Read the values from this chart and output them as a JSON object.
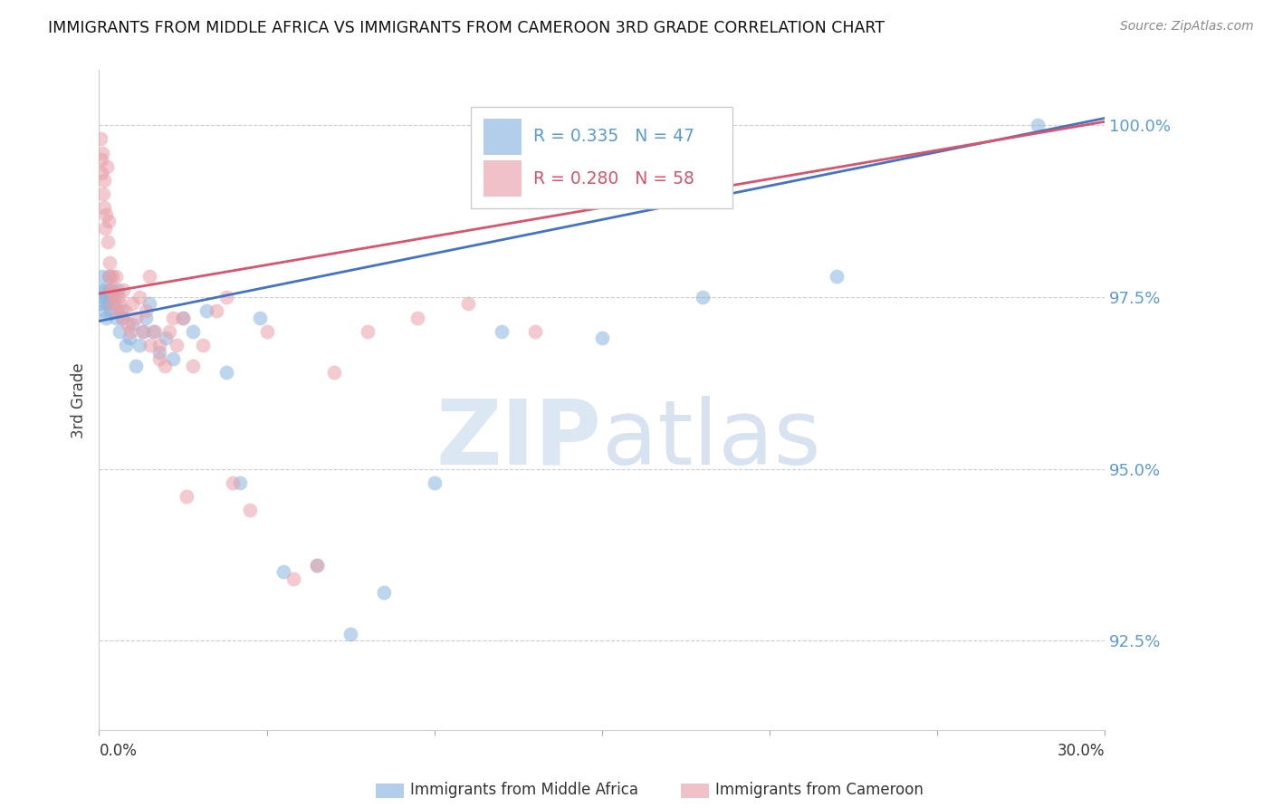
{
  "title": "IMMIGRANTS FROM MIDDLE AFRICA VS IMMIGRANTS FROM CAMEROON 3RD GRADE CORRELATION CHART",
  "source": "Source: ZipAtlas.com",
  "ylabel": "3rd Grade",
  "y_ticks": [
    92.5,
    95.0,
    97.5,
    100.0
  ],
  "x_lim": [
    0.0,
    30.0
  ],
  "y_lim": [
    91.2,
    100.8
  ],
  "watermark_zip": "ZIP",
  "watermark_atlas": "atlas",
  "series1_label": "Immigrants from Middle Africa",
  "series1_color": "#8ab4e0",
  "series2_label": "Immigrants from Cameroon",
  "series2_color": "#e8a0a8",
  "series1_R": 0.335,
  "series1_N": 47,
  "series2_R": 0.28,
  "series2_N": 58,
  "blue_x": [
    0.05,
    0.08,
    0.1,
    0.12,
    0.15,
    0.18,
    0.2,
    0.22,
    0.25,
    0.28,
    0.3,
    0.35,
    0.4,
    0.45,
    0.5,
    0.55,
    0.6,
    0.65,
    0.7,
    0.8,
    0.9,
    1.0,
    1.1,
    1.2,
    1.3,
    1.4,
    1.5,
    1.6,
    1.8,
    2.0,
    2.2,
    2.5,
    2.8,
    3.2,
    3.8,
    4.2,
    4.8,
    5.5,
    6.5,
    7.5,
    8.5,
    10.0,
    12.0,
    15.0,
    18.0,
    22.0,
    28.0
  ],
  "blue_y": [
    97.4,
    97.6,
    97.8,
    97.5,
    97.3,
    97.6,
    97.2,
    97.4,
    97.5,
    97.8,
    97.6,
    97.3,
    97.5,
    97.4,
    97.2,
    97.6,
    97.0,
    97.3,
    97.2,
    96.8,
    96.9,
    97.1,
    96.5,
    96.8,
    97.0,
    97.2,
    97.4,
    97.0,
    96.7,
    96.9,
    96.6,
    97.2,
    97.0,
    97.3,
    96.4,
    94.8,
    97.2,
    93.5,
    93.6,
    92.6,
    93.2,
    94.8,
    97.0,
    96.9,
    97.5,
    97.8,
    100.0
  ],
  "pink_x": [
    0.03,
    0.06,
    0.08,
    0.1,
    0.12,
    0.14,
    0.16,
    0.18,
    0.2,
    0.22,
    0.25,
    0.28,
    0.3,
    0.32,
    0.35,
    0.38,
    0.4,
    0.43,
    0.46,
    0.5,
    0.54,
    0.58,
    0.62,
    0.68,
    0.72,
    0.78,
    0.85,
    0.92,
    1.0,
    1.1,
    1.2,
    1.3,
    1.4,
    1.52,
    1.65,
    1.8,
    1.95,
    2.1,
    2.3,
    2.5,
    2.8,
    3.1,
    3.5,
    4.0,
    4.5,
    5.0,
    5.8,
    6.5,
    7.0,
    8.0,
    9.5,
    11.0,
    13.0,
    1.5,
    2.2,
    1.8,
    3.8,
    2.6
  ],
  "pink_y": [
    99.8,
    99.5,
    99.3,
    99.6,
    99.0,
    98.8,
    99.2,
    98.5,
    98.7,
    99.4,
    98.3,
    98.6,
    97.8,
    98.0,
    97.6,
    97.8,
    97.4,
    97.6,
    97.5,
    97.8,
    97.3,
    97.5,
    97.4,
    97.2,
    97.6,
    97.3,
    97.1,
    97.0,
    97.4,
    97.2,
    97.5,
    97.0,
    97.3,
    96.8,
    97.0,
    96.8,
    96.5,
    97.0,
    96.8,
    97.2,
    96.5,
    96.8,
    97.3,
    94.8,
    94.4,
    97.0,
    93.4,
    93.6,
    96.4,
    97.0,
    97.2,
    97.4,
    97.0,
    97.8,
    97.2,
    96.6,
    97.5,
    94.6
  ],
  "grid_color": "#cccccc",
  "bg_color": "#ffffff",
  "tick_color": "#5b9bd5",
  "trend_color1": "#4472c4",
  "trend_color2": "#d9536b"
}
